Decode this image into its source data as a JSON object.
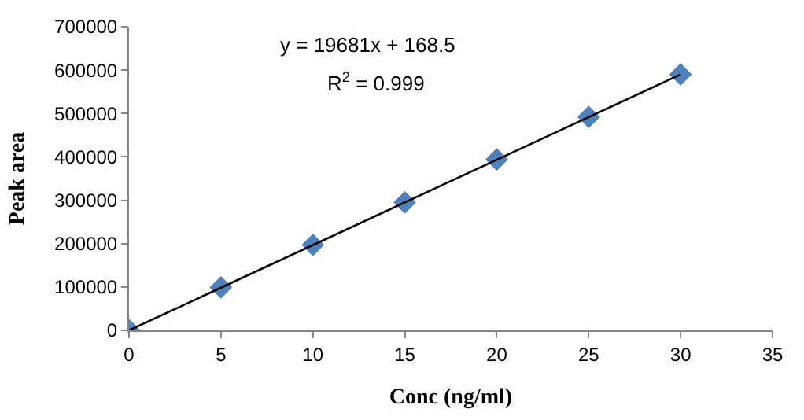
{
  "chart_data": {
    "type": "scatter",
    "xlabel": "Conc (ng/ml)",
    "ylabel": "Peak area",
    "annotations": [
      "y = 19681x + 168.5",
      "R$^{2}$ = 0.999"
    ],
    "x": [
      0,
      5,
      10,
      15,
      20,
      25,
      30
    ],
    "series": [
      {
        "color": "#4f81bd",
        "values": [
          0,
          99000,
          197000,
          295000,
          394000,
          492000,
          590000
        ],
        "marker": "diamond"
      },
      {
        "type": "line",
        "color": "#000000",
        "x": [
          0,
          30
        ],
        "values": [
          0,
          590000
        ],
        "marker": "none",
        "line_style": "solid"
      }
    ],
    "xlim": [
      0,
      35
    ],
    "xticks": [
      0,
      5,
      10,
      15,
      20,
      25,
      30,
      35
    ],
    "ylim": [
      0,
      700000
    ],
    "yticks": [
      0,
      100000,
      200000,
      300000,
      400000,
      500000,
      600000,
      700000
    ]
  }
}
